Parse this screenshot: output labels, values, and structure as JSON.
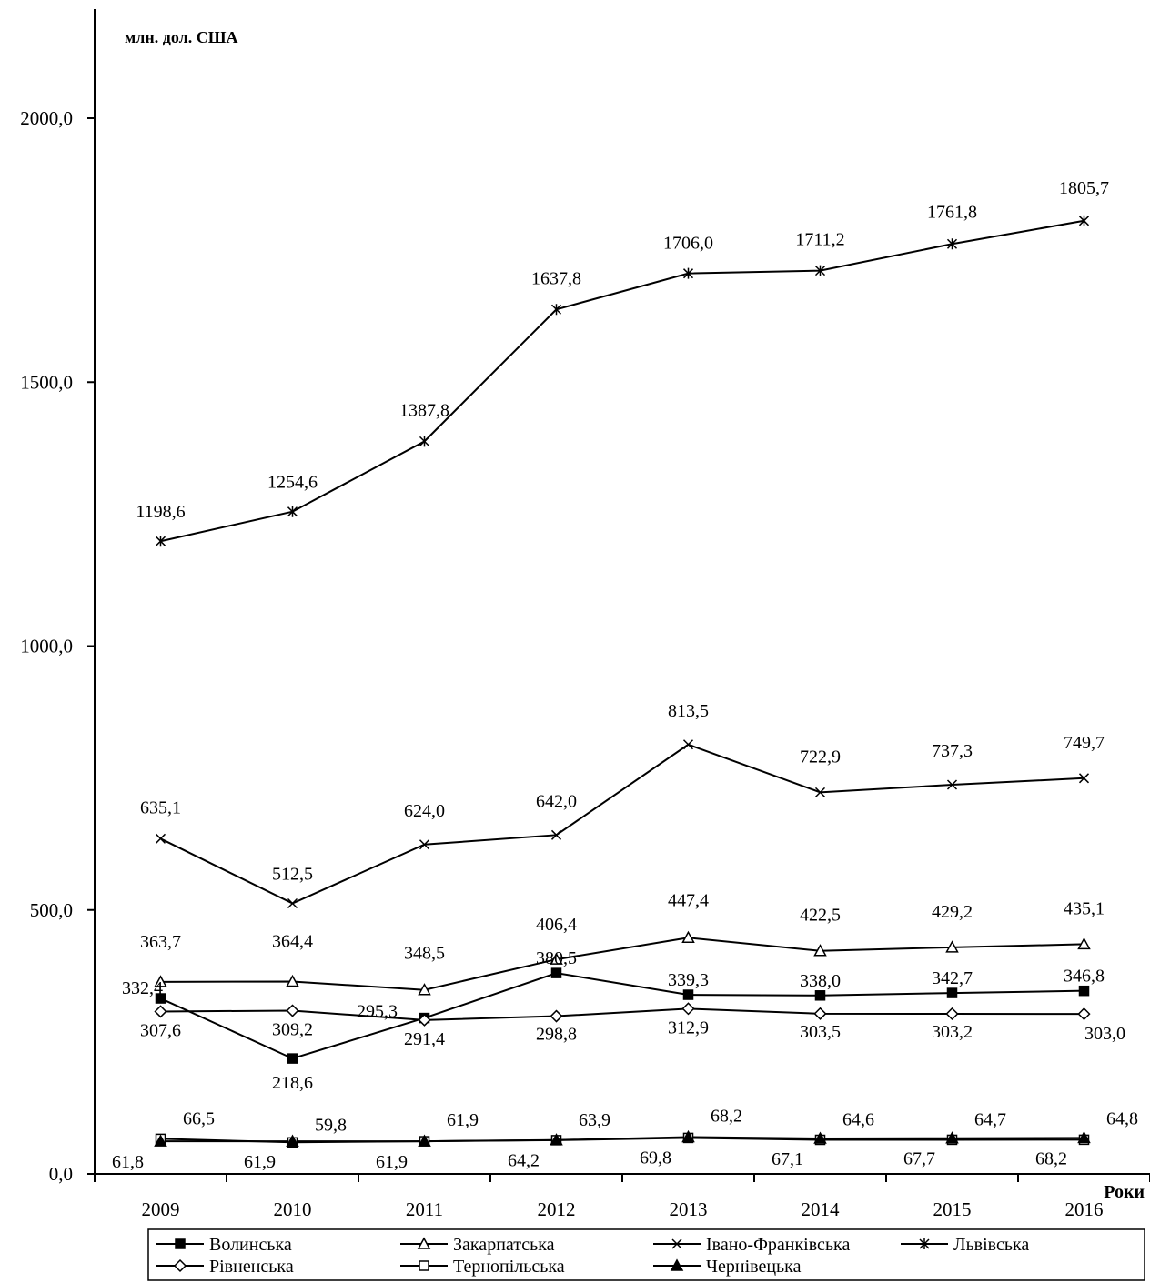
{
  "chart_data": {
    "type": "line",
    "title": "",
    "unit_label": "млн. дол. США",
    "xlabel": "Роки",
    "ylabel": "",
    "x": [
      "2009",
      "2010",
      "2011",
      "2012",
      "2013",
      "2014",
      "2015",
      "2016"
    ],
    "ylim": [
      0,
      2200
    ],
    "yticks": [
      0,
      500,
      1000,
      1500,
      2000
    ],
    "ytick_labels": [
      "0,0",
      "500,0",
      "1000,0",
      "1500,0",
      "2000,0"
    ],
    "grid": false,
    "legend_position": "bottom",
    "series": [
      {
        "name": "Волинська",
        "marker": "filled-square",
        "values": [
          332.4,
          218.6,
          295.3,
          380.5,
          339.3,
          338.0,
          342.7,
          346.8
        ],
        "labels": [
          "332,4",
          "218,6",
          "295,3",
          "380,5",
          "339,3",
          "338,0",
          "342,7",
          "346,8"
        ]
      },
      {
        "name": "Закарпатська",
        "marker": "open-triangle",
        "values": [
          363.7,
          364.4,
          348.5,
          406.4,
          447.4,
          422.5,
          429.2,
          435.1
        ],
        "labels": [
          "363,7",
          "364,4",
          "348,5",
          "406,4",
          "447,4",
          "422,5",
          "429,2",
          "435,1"
        ]
      },
      {
        "name": "Івано-Франківська",
        "marker": "x",
        "values": [
          635.1,
          512.5,
          624.0,
          642.0,
          813.5,
          722.9,
          737.3,
          749.7
        ],
        "labels": [
          "635,1",
          "512,5",
          "624,0",
          "642,0",
          "813,5",
          "722,9",
          "737,3",
          "749,7"
        ]
      },
      {
        "name": "Львівська",
        "marker": "star",
        "values": [
          1198.6,
          1254.6,
          1387.8,
          1637.8,
          1706.0,
          1711.2,
          1761.8,
          1805.7
        ],
        "labels": [
          "1198,6",
          "1254,6",
          "1387,8",
          "1637,8",
          "1706,0",
          "1711,2",
          "1761,8",
          "1805,7"
        ]
      },
      {
        "name": "Рівненська",
        "marker": "open-diamond",
        "values": [
          307.6,
          309.2,
          291.4,
          298.8,
          312.9,
          303.5,
          303.2,
          303.0
        ],
        "labels": [
          "307,6",
          "309,2",
          "291,4",
          "298,8",
          "312,9",
          "303,5",
          "303,2",
          "303,0"
        ]
      },
      {
        "name": "Тернопільська",
        "marker": "open-square",
        "values": [
          66.5,
          59.8,
          61.9,
          63.9,
          68.2,
          64.6,
          64.7,
          64.8
        ],
        "labels": [
          "66,5",
          "59,8",
          "61,9",
          "63,9",
          "68,2",
          "64,6",
          "64,7",
          "64,8"
        ]
      },
      {
        "name": "Чернівецька",
        "marker": "filled-triangle",
        "values": [
          61.8,
          61.9,
          61.9,
          64.2,
          69.8,
          67.1,
          67.7,
          68.2
        ],
        "labels": [
          "61,8",
          "61,9",
          "61,9",
          "64,2",
          "69,8",
          "67,1",
          "67,7",
          "68,2"
        ]
      }
    ]
  }
}
